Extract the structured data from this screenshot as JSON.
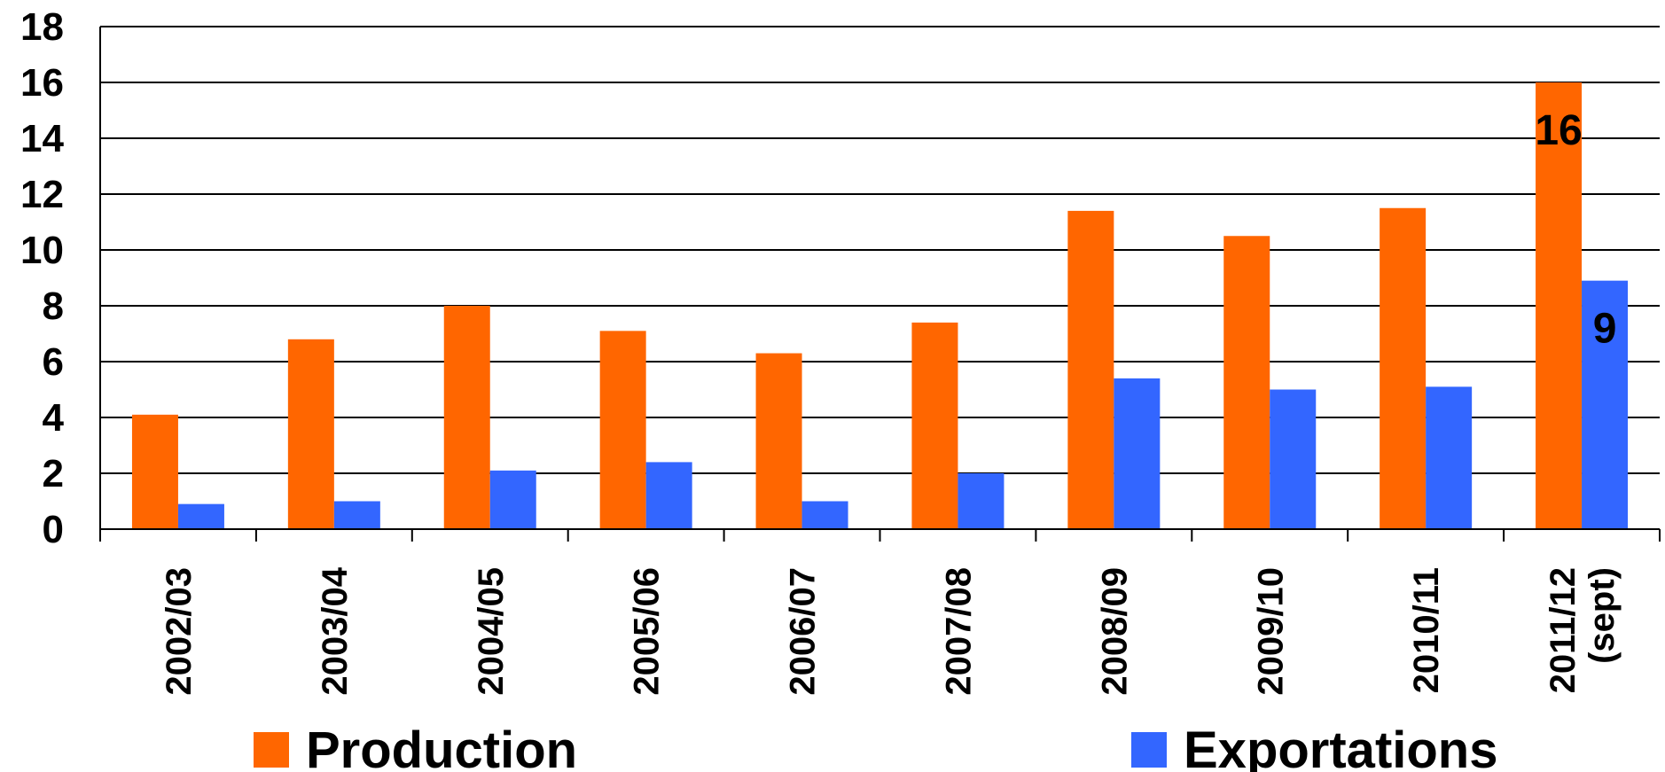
{
  "chart_data": {
    "type": "bar",
    "categories": [
      "2002/03",
      "2003/04",
      "2004/05",
      "2005/06",
      "2006/07",
      "2007/08",
      "2008/09",
      "2009/10",
      "2010/11",
      "2011/12\n(sept)"
    ],
    "series": [
      {
        "name": "Production",
        "color": "#FF6600",
        "values": [
          4.1,
          6.8,
          8.0,
          7.1,
          6.3,
          7.4,
          11.4,
          10.5,
          11.5,
          16.0
        ]
      },
      {
        "name": "Exportations",
        "color": "#3366FF",
        "values": [
          0.9,
          1.0,
          2.1,
          2.4,
          1.0,
          2.0,
          5.4,
          5.0,
          5.1,
          8.9
        ]
      }
    ],
    "data_labels": [
      {
        "series": 0,
        "index": 9,
        "text": "16"
      },
      {
        "series": 1,
        "index": 9,
        "text": "9"
      }
    ],
    "ylim": [
      0,
      18
    ],
    "yticks": [
      "0",
      "2",
      "4",
      "6",
      "8",
      "10",
      "12",
      "14",
      "16",
      "18"
    ],
    "grid": true,
    "legend": "bottom",
    "title": "",
    "xlabel": "",
    "ylabel": ""
  }
}
